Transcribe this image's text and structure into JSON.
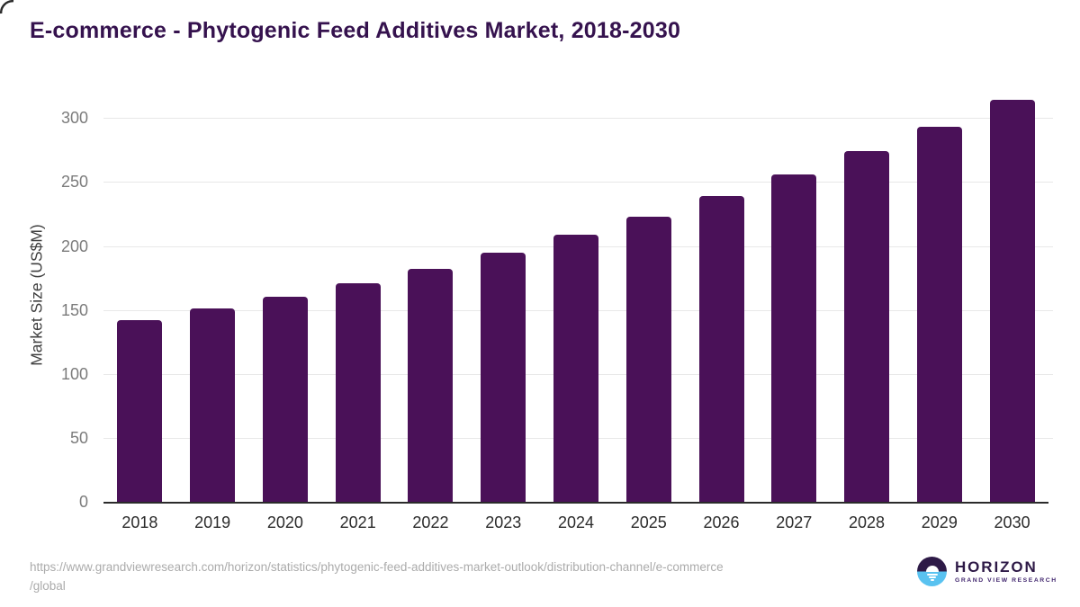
{
  "page": {
    "title": "E-commerce - Phytogenic Feed Additives Market, 2018-2030"
  },
  "chart_data": {
    "type": "bar",
    "title": "E-commerce - Phytogenic Feed Additives Market, 2018-2030",
    "categories": [
      "2018",
      "2019",
      "2020",
      "2021",
      "2022",
      "2023",
      "2024",
      "2025",
      "2026",
      "2027",
      "2028",
      "2029",
      "2030"
    ],
    "values": [
      142,
      151,
      160,
      171,
      182,
      195,
      209,
      223,
      239,
      256,
      274,
      293,
      314
    ],
    "xlabel": "",
    "ylabel": "Market Size (US$M)",
    "ylim": [
      0,
      322
    ],
    "yticks": [
      0,
      50,
      100,
      150,
      200,
      250,
      300
    ],
    "grid": "horizontal-light",
    "legend": "none",
    "bar_color": "#4a1158"
  },
  "footer": {
    "source_url_line1": "https://www.grandviewresearch.com/horizon/statistics/phytogenic-feed-additives-market-outlook/distribution-channel/e-commerce",
    "source_url_line2": "/global",
    "logo": {
      "brand": "HORIZON",
      "tagline": "GRAND VIEW RESEARCH"
    }
  },
  "colors": {
    "bar": "#4a1158",
    "title": "#35124e",
    "axis_line": "#2b2b2b",
    "gridline": "#e8e8e8",
    "y_tick_text": "#7b7b7b",
    "x_tick_text": "#2b2b2b",
    "url_text": "#ababab",
    "logo_dark_purple": "#2e1a47",
    "logo_blue": "#59c2f0"
  }
}
